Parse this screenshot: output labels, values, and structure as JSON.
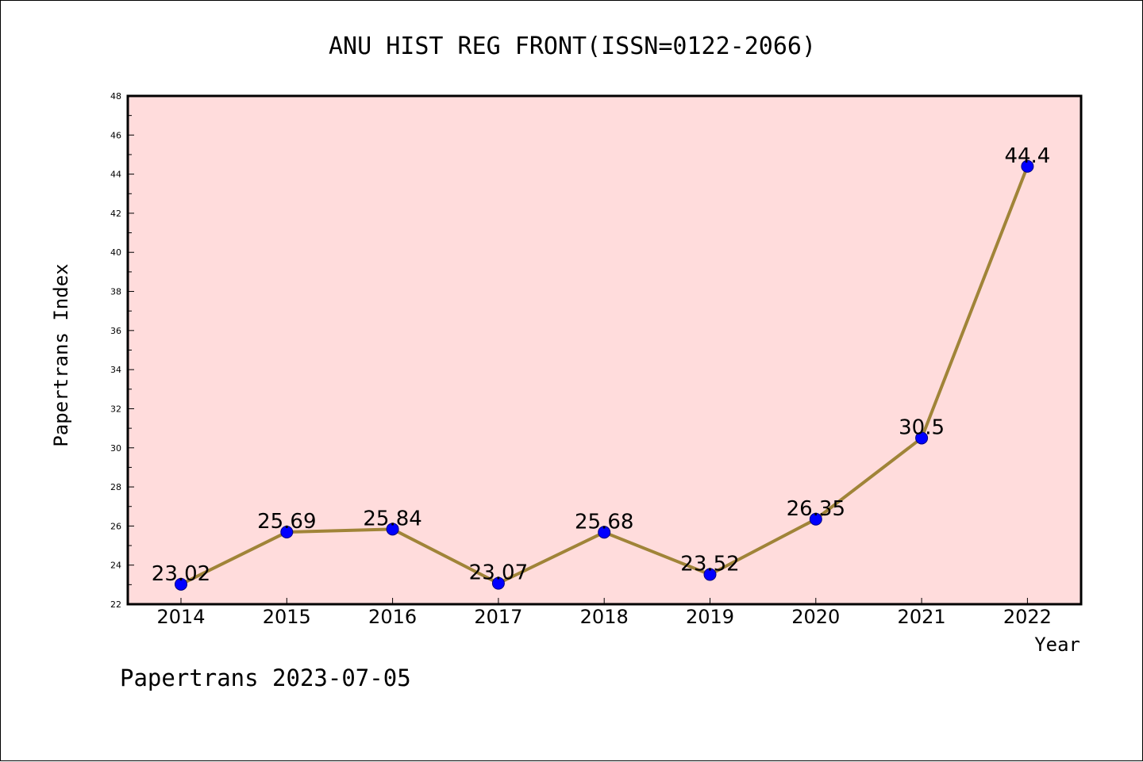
{
  "chart_data": {
    "type": "line",
    "title": "ANU HIST REG FRONT(ISSN=0122-2066)",
    "xlabel": "Year",
    "ylabel": "Papertrans Index",
    "categories": [
      "2014",
      "2015",
      "2016",
      "2017",
      "2018",
      "2019",
      "2020",
      "2021",
      "2022"
    ],
    "values": [
      23.02,
      25.69,
      25.84,
      23.07,
      25.68,
      23.52,
      26.35,
      30.5,
      44.4
    ],
    "data_labels": [
      "23.02",
      "25.69",
      "25.84",
      "23.07",
      "25.68",
      "23.52",
      "26.35",
      "30.5",
      "44.4"
    ],
    "ylim": [
      22,
      48
    ],
    "yticks": [
      "22",
      "24",
      "26",
      "28",
      "30",
      "32",
      "34",
      "36",
      "38",
      "40",
      "42",
      "44",
      "46",
      "48"
    ],
    "grid": false,
    "legend": "none",
    "colors": {
      "plot_background": "#ffdcdc",
      "line": "#a08438",
      "marker_fill": "#0000ff",
      "marker_edge": "#000080"
    }
  },
  "footer": {
    "text": "Papertrans 2023-07-05"
  }
}
